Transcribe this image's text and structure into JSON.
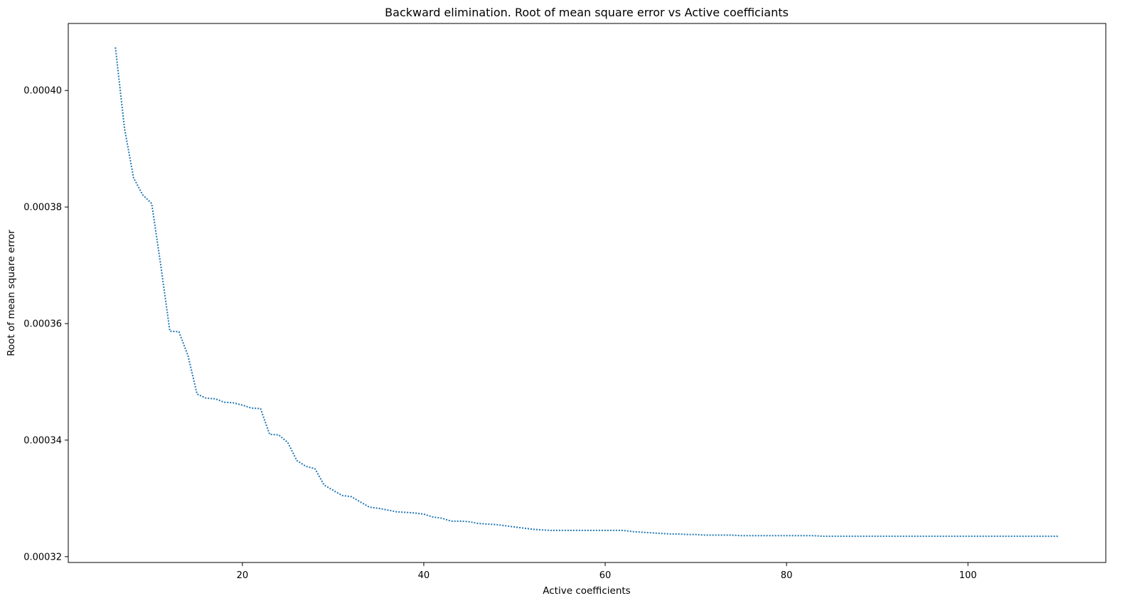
{
  "chart_data": {
    "type": "line",
    "title": "Backward elimination. Root of mean square error vs Active coefficiants",
    "xlabel": "Active coefficients",
    "ylabel": "Root of mean square error",
    "xlim": [
      0.8,
      115.2
    ],
    "ylim": [
      0.000319,
      0.0004115
    ],
    "grid": false,
    "legend": "none",
    "xticks": [
      {
        "value": 20,
        "label": "20"
      },
      {
        "value": 40,
        "label": "40"
      },
      {
        "value": 60,
        "label": "60"
      },
      {
        "value": 80,
        "label": "80"
      },
      {
        "value": 100,
        "label": "100"
      }
    ],
    "yticks": [
      {
        "value": 0.00032,
        "label": "0.00032"
      },
      {
        "value": 0.00034,
        "label": "0.00034"
      },
      {
        "value": 0.00036,
        "label": "0.00036"
      },
      {
        "value": 0.00038,
        "label": "0.00038"
      },
      {
        "value": 0.0004,
        "label": "0.00040"
      }
    ],
    "series": [
      {
        "color": "#1f77b4",
        "line_style": "dotted",
        "x": [
          6,
          7,
          8,
          9,
          10,
          11,
          12,
          13,
          14,
          15,
          16,
          17,
          18,
          19,
          20,
          21,
          22,
          23,
          24,
          25,
          26,
          27,
          28,
          29,
          30,
          31,
          32,
          33,
          34,
          35,
          36,
          37,
          38,
          39,
          40,
          41,
          42,
          43,
          44,
          45,
          46,
          47,
          48,
          49,
          50,
          51,
          52,
          53,
          54,
          55,
          56,
          57,
          58,
          59,
          60,
          61,
          62,
          63,
          64,
          65,
          66,
          67,
          68,
          69,
          70,
          71,
          72,
          73,
          74,
          75,
          76,
          77,
          78,
          79,
          80,
          81,
          82,
          83,
          84,
          85,
          86,
          87,
          88,
          89,
          90,
          91,
          92,
          93,
          94,
          95,
          96,
          97,
          98,
          99,
          100,
          101,
          102,
          103,
          104,
          105,
          106,
          107,
          108,
          109,
          110
        ],
        "y": [
          0.0004074,
          0.0003935,
          0.000385,
          0.0003821,
          0.0003806,
          0.00037,
          0.0003587,
          0.0003586,
          0.0003545,
          0.0003479,
          0.0003472,
          0.0003471,
          0.0003465,
          0.0003464,
          0.000346,
          0.0003455,
          0.0003454,
          0.000341,
          0.0003409,
          0.0003396,
          0.0003365,
          0.0003355,
          0.0003351,
          0.0003323,
          0.0003314,
          0.0003305,
          0.0003303,
          0.0003294,
          0.0003285,
          0.0003283,
          0.000328,
          0.0003277,
          0.0003276,
          0.0003275,
          0.0003273,
          0.0003268,
          0.0003266,
          0.0003261,
          0.0003261,
          0.000326,
          0.0003257,
          0.0003256,
          0.0003255,
          0.0003253,
          0.0003251,
          0.0003249,
          0.0003247,
          0.0003246,
          0.0003245,
          0.0003245,
          0.0003245,
          0.0003245,
          0.0003245,
          0.0003245,
          0.0003245,
          0.0003245,
          0.0003245,
          0.0003243,
          0.0003242,
          0.0003241,
          0.000324,
          0.0003239,
          0.0003239,
          0.0003238,
          0.0003238,
          0.0003237,
          0.0003237,
          0.0003237,
          0.0003237,
          0.0003236,
          0.0003236,
          0.0003236,
          0.0003236,
          0.0003236,
          0.0003236,
          0.0003236,
          0.0003236,
          0.0003236,
          0.0003235,
          0.0003235,
          0.0003235,
          0.0003235,
          0.0003235,
          0.0003235,
          0.0003235,
          0.0003235,
          0.0003235,
          0.0003235,
          0.0003235,
          0.0003235,
          0.0003235,
          0.0003235,
          0.0003235,
          0.0003235,
          0.0003235,
          0.0003235,
          0.0003235,
          0.0003235,
          0.0003235,
          0.0003235,
          0.0003235,
          0.0003235,
          0.0003235,
          0.0003235,
          0.0003235
        ]
      }
    ]
  }
}
